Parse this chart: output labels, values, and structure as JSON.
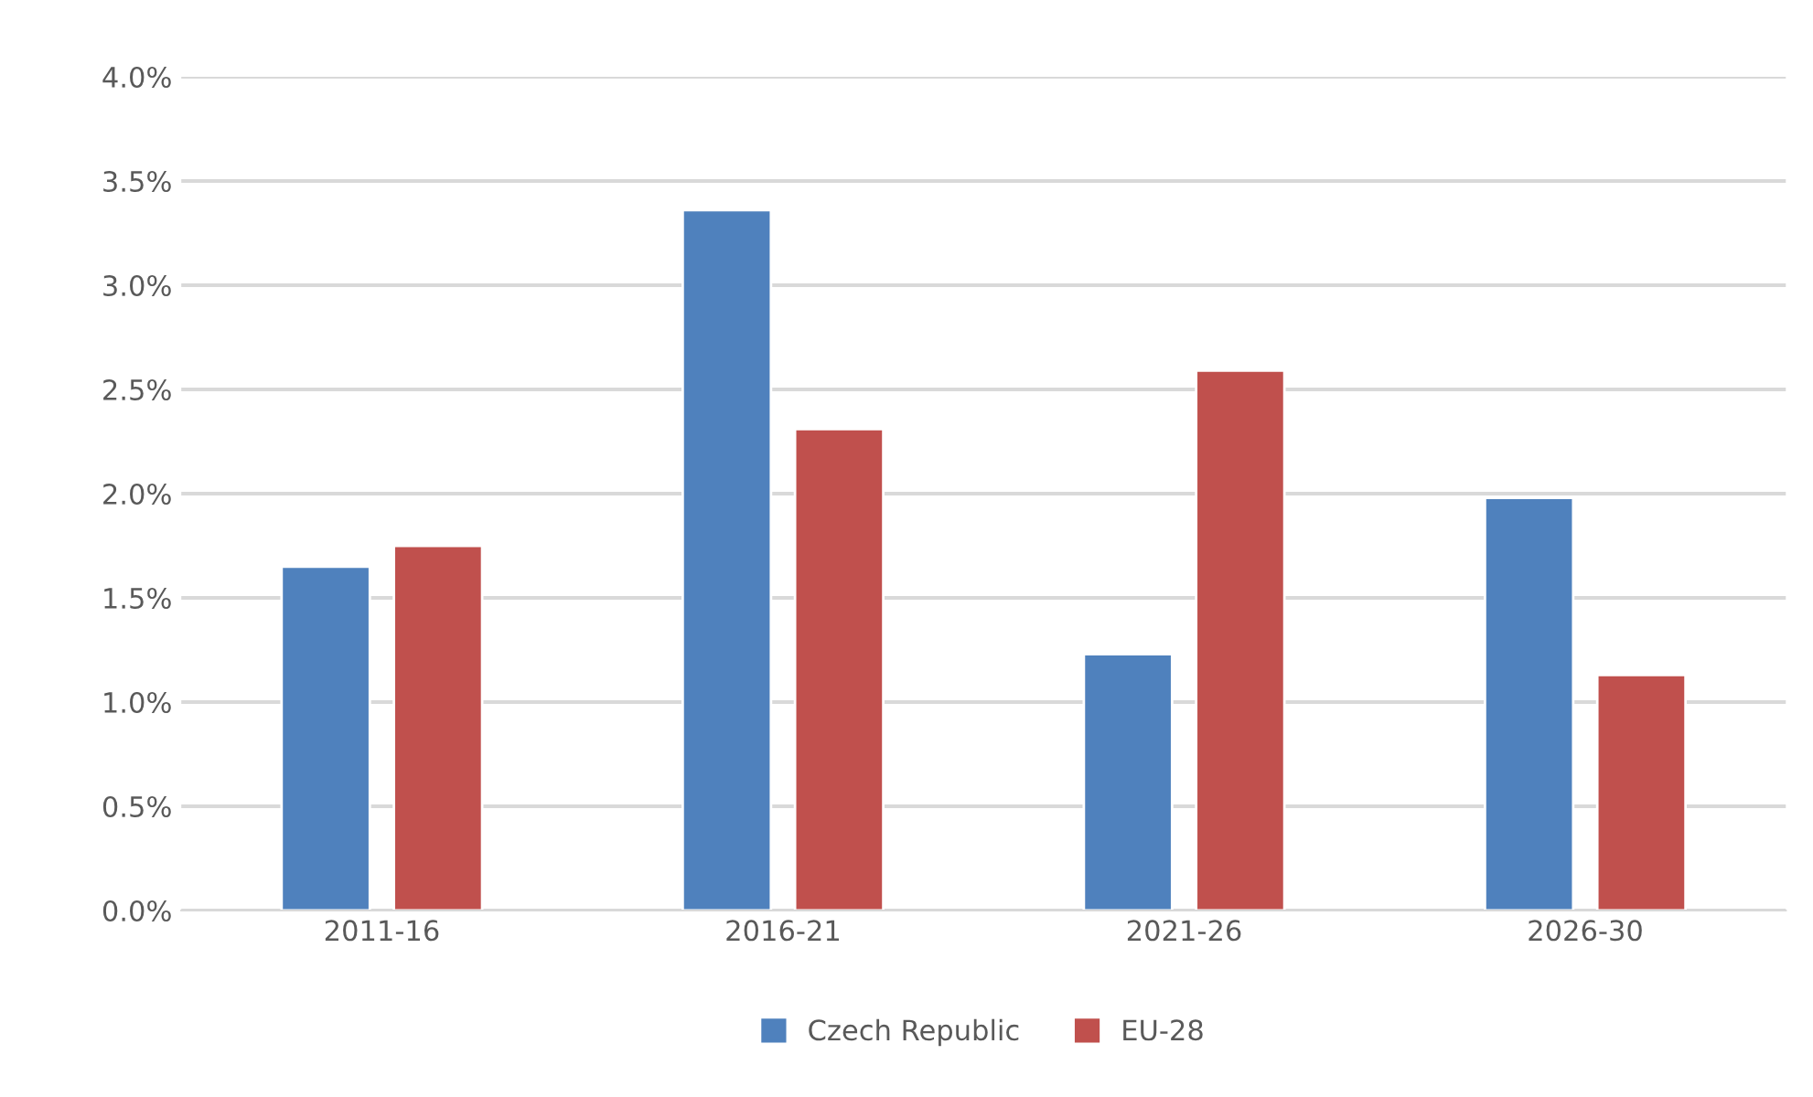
{
  "chart_data": {
    "type": "bar",
    "categories": [
      "2011-16",
      "2016-21",
      "2021-26",
      "2026-30"
    ],
    "series": [
      {
        "name": "Czech Republic",
        "color": "#4f81bd",
        "values": [
          1.65,
          3.36,
          1.23,
          1.98
        ]
      },
      {
        "name": "EU-28",
        "color": "#c0504d",
        "values": [
          1.75,
          2.31,
          2.59,
          1.13
        ]
      }
    ],
    "ylim": [
      0,
      4.0
    ],
    "yticks": [
      {
        "value": 0,
        "label": "0.0%"
      },
      {
        "value": 0.5,
        "label": "0.5%"
      },
      {
        "value": 1.0,
        "label": "1.0%"
      },
      {
        "value": 1.5,
        "label": "1.5%"
      },
      {
        "value": 2.0,
        "label": "2.0%"
      },
      {
        "value": 2.5,
        "label": "2.5%"
      },
      {
        "value": 3.0,
        "label": "3.0%"
      },
      {
        "value": 3.5,
        "label": "3.5%"
      },
      {
        "value": 4.0,
        "label": "4.0%"
      }
    ],
    "grid": "y",
    "legend": "bottom"
  }
}
